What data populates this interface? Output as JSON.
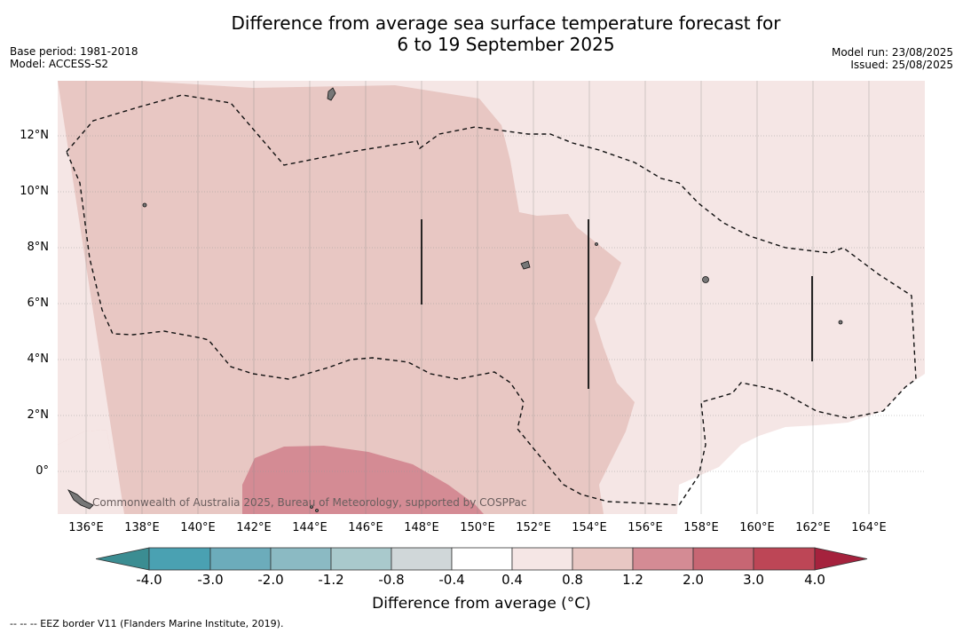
{
  "title": {
    "line1": "Difference from average sea surface temperature forecast for",
    "line2": "6 to 19 September 2025"
  },
  "meta_left": {
    "base_period": "Base period: 1981-2018",
    "model": "Model: ACCESS-S2"
  },
  "meta_right": {
    "model_run": "Model run: 23/08/2025",
    "issued": "Issued: 25/08/2025"
  },
  "map": {
    "lon_labels": [
      "136°E",
      "138°E",
      "140°E",
      "142°E",
      "144°E",
      "146°E",
      "148°E",
      "150°E",
      "152°E",
      "154°E",
      "156°E",
      "158°E",
      "160°E",
      "162°E",
      "164°E"
    ],
    "lat_labels": [
      "12°N",
      "10°N",
      "8°N",
      "6°N",
      "4°N",
      "2°N",
      "0°"
    ],
    "copyright": "Commonwealth of Australia 2025, Bureau of Meteorology, supported by COSPPac"
  },
  "colorbar": {
    "title": "Difference from average (°C)",
    "tick_labels": [
      "-4.0",
      "-3.0",
      "-2.0",
      "-1.2",
      "-0.8",
      "-0.4",
      "0.4",
      "0.8",
      "1.2",
      "2.0",
      "3.0",
      "4.0"
    ],
    "colors": [
      "#4aa1b2",
      "#6cacbb",
      "#8bbac3",
      "#a9c9cc",
      "#d0d7d9",
      "#ffffff",
      "#f5e6e5",
      "#e8c7c3",
      "#d48b94",
      "#c76673",
      "#bd4656"
    ],
    "under_color": "#3b8d92",
    "over_color": "#a5223d"
  },
  "footer": {
    "legend": "--  --  -- EEZ border V11 (Flanders Marine Institute, 2019)."
  }
}
